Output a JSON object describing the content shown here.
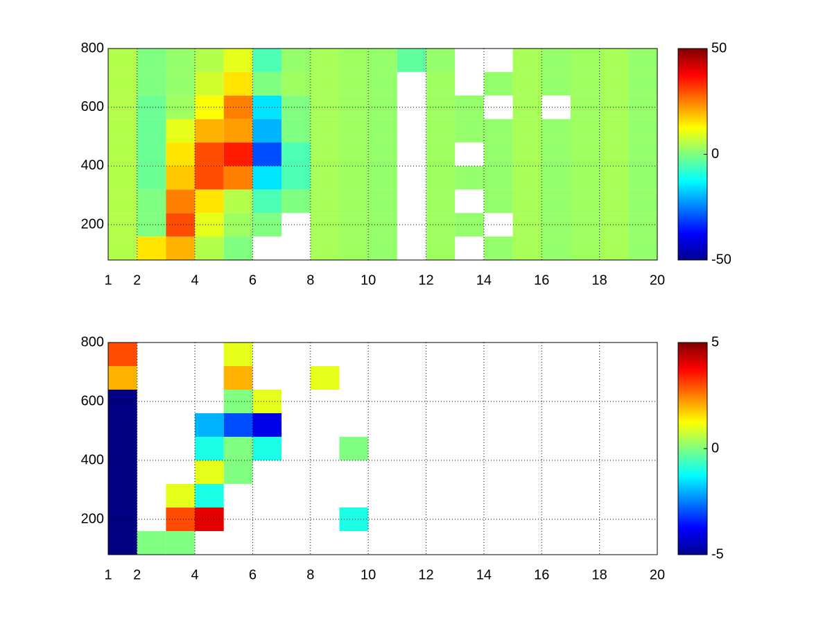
{
  "chart_data": [
    {
      "type": "heatmap",
      "colormap": "jet",
      "grid": true,
      "xlim": [
        1,
        20
      ],
      "ylim": [
        80,
        800
      ],
      "xticks": [
        1,
        2,
        4,
        6,
        8,
        10,
        12,
        14,
        16,
        18,
        20
      ],
      "yticks": [
        200,
        400,
        600,
        800
      ],
      "clim": [
        -50,
        50
      ],
      "cticks": [
        -50,
        0,
        50
      ],
      "x_edges": [
        1,
        2,
        3,
        4,
        5,
        6,
        7,
        8,
        9,
        10,
        11,
        12,
        13,
        14,
        15,
        16,
        17,
        18,
        19,
        20
      ],
      "y_edges": [
        80,
        160,
        240,
        320,
        400,
        480,
        560,
        640,
        720,
        800
      ],
      "z": [
        [
          5,
          15,
          20,
          5,
          0,
          null,
          null,
          4,
          3,
          2,
          null,
          3,
          null,
          2,
          4,
          2,
          3,
          4,
          2
        ],
        [
          5,
          0,
          30,
          10,
          3,
          0,
          null,
          4,
          3,
          2,
          null,
          3,
          2,
          null,
          4,
          2,
          3,
          4,
          2
        ],
        [
          5,
          0,
          25,
          15,
          5,
          -5,
          0,
          4,
          3,
          2,
          null,
          3,
          null,
          2,
          4,
          2,
          3,
          4,
          2
        ],
        [
          5,
          -2,
          18,
          30,
          25,
          -15,
          -5,
          4,
          3,
          2,
          null,
          3,
          2,
          2,
          4,
          2,
          3,
          4,
          2
        ],
        [
          5,
          -2,
          15,
          30,
          35,
          -30,
          -5,
          4,
          3,
          2,
          null,
          3,
          null,
          2,
          4,
          2,
          3,
          4,
          2
        ],
        [
          5,
          -2,
          10,
          20,
          22,
          -20,
          0,
          4,
          3,
          2,
          null,
          3,
          2,
          2,
          4,
          2,
          3,
          4,
          2
        ],
        [
          5,
          -2,
          3,
          12,
          25,
          -15,
          0,
          4,
          3,
          2,
          null,
          3,
          2,
          null,
          4,
          null,
          3,
          4,
          2
        ],
        [
          5,
          0,
          2,
          8,
          15,
          0,
          3,
          4,
          3,
          2,
          null,
          3,
          null,
          2,
          4,
          2,
          3,
          4,
          2
        ],
        [
          5,
          0,
          2,
          5,
          10,
          -5,
          2,
          4,
          3,
          2,
          -3,
          2,
          null,
          null,
          4,
          2,
          3,
          4,
          2
        ]
      ]
    },
    {
      "type": "heatmap",
      "colormap": "jet",
      "grid": true,
      "xlim": [
        1,
        20
      ],
      "ylim": [
        80,
        800
      ],
      "xticks": [
        1,
        2,
        4,
        6,
        8,
        10,
        12,
        14,
        16,
        18,
        20
      ],
      "yticks": [
        200,
        400,
        600,
        800
      ],
      "clim": [
        -5,
        5
      ],
      "cticks": [
        -5,
        0,
        5
      ],
      "x_edges": [
        1,
        2,
        3,
        4,
        5,
        6,
        7,
        8,
        9,
        10,
        11,
        12,
        13,
        14,
        15,
        16,
        17,
        18,
        19,
        20
      ],
      "y_edges": [
        80,
        160,
        240,
        320,
        400,
        480,
        560,
        640,
        720,
        800
      ],
      "z": [
        [
          -5,
          0,
          0,
          null,
          null,
          null,
          null,
          null,
          null,
          null,
          null,
          null,
          null,
          null,
          null,
          null,
          null,
          null,
          null
        ],
        [
          -5,
          null,
          3,
          4,
          null,
          null,
          null,
          null,
          -1,
          null,
          null,
          null,
          null,
          null,
          null,
          null,
          null,
          null,
          null
        ],
        [
          -5,
          null,
          1,
          -1,
          null,
          null,
          null,
          null,
          null,
          null,
          null,
          null,
          null,
          null,
          null,
          null,
          null,
          null,
          null
        ],
        [
          -5,
          null,
          null,
          1,
          0,
          null,
          null,
          null,
          null,
          null,
          null,
          null,
          null,
          null,
          null,
          null,
          null,
          null,
          null
        ],
        [
          -5,
          null,
          null,
          -1,
          0,
          -1,
          null,
          null,
          0,
          null,
          null,
          null,
          null,
          null,
          null,
          null,
          null,
          null,
          null
        ],
        [
          -5,
          null,
          null,
          -2,
          -3,
          -4,
          null,
          null,
          null,
          null,
          null,
          null,
          null,
          null,
          null,
          null,
          null,
          null,
          null
        ],
        [
          -5,
          null,
          null,
          null,
          0,
          1,
          null,
          null,
          null,
          null,
          null,
          null,
          null,
          null,
          null,
          null,
          null,
          null,
          null
        ],
        [
          2,
          null,
          null,
          null,
          2,
          null,
          null,
          1,
          null,
          null,
          null,
          null,
          null,
          null,
          null,
          null,
          null,
          null,
          null
        ],
        [
          3,
          null,
          null,
          null,
          1,
          null,
          null,
          null,
          null,
          null,
          null,
          null,
          null,
          null,
          null,
          null,
          null,
          null,
          null
        ]
      ]
    }
  ]
}
